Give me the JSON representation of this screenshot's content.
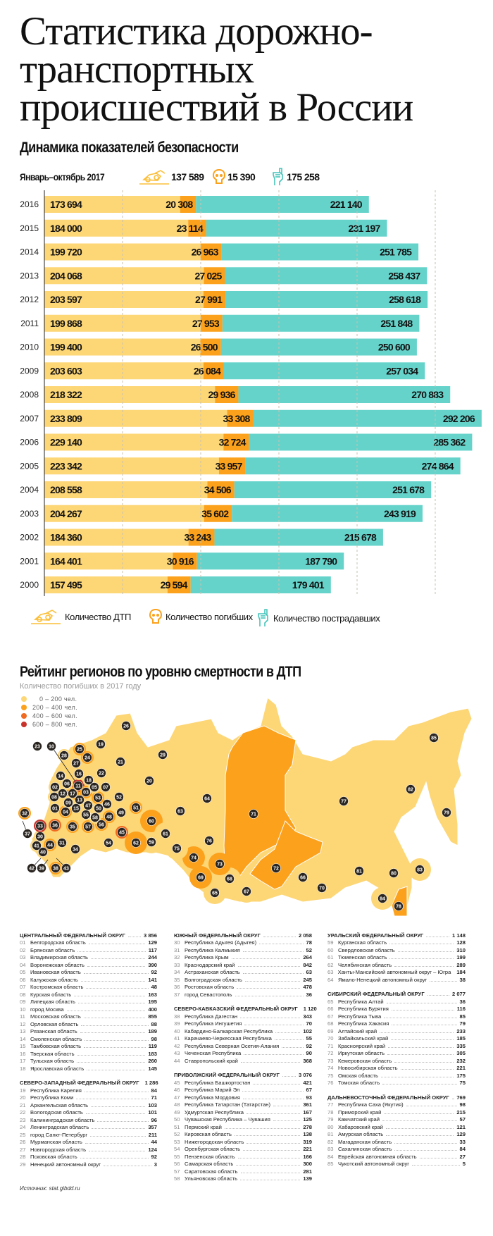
{
  "title": {
    "lines": [
      "Статистика дорожно-",
      "транспортных",
      "происшествий в России"
    ]
  },
  "section1": {
    "title": "Динамика показателей безопасности",
    "period_label": "Январь–октябрь 2017",
    "totals": {
      "dtp": "137 589",
      "deaths": "15 390",
      "injured": "175 258"
    }
  },
  "colors": {
    "dtp": "#fdd676",
    "deaths": "#fca11c",
    "injured": "#66d3cb",
    "c0_200": "#fdd676",
    "c200_400": "#fca11c",
    "c400_600": "#f06a20",
    "c600_800": "#c8332b",
    "marker": "#2a2520"
  },
  "chart_data": {
    "type": "bar",
    "orientation": "horizontal-stacked",
    "categories": [
      "2016",
      "2015",
      "2014",
      "2013",
      "2012",
      "2011",
      "2010",
      "2009",
      "2008",
      "2007",
      "2006",
      "2005",
      "2004",
      "2003",
      "2002",
      "2001",
      "2000"
    ],
    "series": [
      {
        "name": "Количество ДТП",
        "values": [
          173694,
          184000,
          199720,
          204068,
          203597,
          199868,
          199400,
          203603,
          218322,
          233809,
          229140,
          223342,
          208558,
          204267,
          184360,
          164401,
          157495
        ]
      },
      {
        "name": "Количество погибших",
        "values": [
          20308,
          23114,
          26963,
          27025,
          27991,
          27953,
          26500,
          26084,
          29936,
          33308,
          32724,
          33957,
          34506,
          35602,
          33243,
          30916,
          29594
        ]
      },
      {
        "name": "Количество пострадавших",
        "values": [
          221140,
          231197,
          251785,
          258437,
          258618,
          251848,
          250600,
          257034,
          270883,
          292206,
          285362,
          274864,
          251678,
          243919,
          215678,
          187790,
          179401
        ]
      }
    ],
    "grid": "dashed vertical",
    "legend": "bottom",
    "icons": [
      "crashed-car-icon",
      "skull-icon",
      "bandaged-hand-icon"
    ]
  },
  "legend": {
    "dtp": "Количество ДТП",
    "deaths": "Количество погибших",
    "injured": "Количество пострадавших"
  },
  "section2": {
    "title": "Рейтинг регионов по уровню смертности в ДТП",
    "subtitle": "Количество погибших в 2017 году",
    "scale": [
      "0 – 200 чел.",
      "200 – 400 чел.",
      "400 – 600 чел.",
      "600 – 800 чел."
    ]
  },
  "districts": [
    {
      "col": 0,
      "name": "ЦЕНТРАЛЬНЫЙ ФЕДЕРАЛЬНЫЙ ОКРУГ",
      "total": "3 856",
      "regions": [
        {
          "code": "01",
          "name": "Белгородская область",
          "value": "129"
        },
        {
          "code": "02",
          "name": "Брянская область",
          "value": "117"
        },
        {
          "code": "03",
          "name": "Владимирская область",
          "value": "244"
        },
        {
          "code": "04",
          "name": "Воронежская область",
          "value": "390"
        },
        {
          "code": "05",
          "name": "Ивановская область",
          "value": "92"
        },
        {
          "code": "06",
          "name": "Калужская область",
          "value": "141"
        },
        {
          "code": "07",
          "name": "Костромская область",
          "value": "48"
        },
        {
          "code": "08",
          "name": "Курская область",
          "value": "163"
        },
        {
          "code": "09",
          "name": "Липецкая область",
          "value": "195"
        },
        {
          "code": "10",
          "name": "город Москва",
          "value": "400"
        },
        {
          "code": "11",
          "name": "Московская область",
          "value": "855"
        },
        {
          "code": "12",
          "name": "Орловская область",
          "value": "88"
        },
        {
          "code": "13",
          "name": "Рязанская область",
          "value": "189"
        },
        {
          "code": "14",
          "name": "Смоленская область",
          "value": "98"
        },
        {
          "code": "15",
          "name": "Тамбовская область",
          "value": "119"
        },
        {
          "code": "16",
          "name": "Тверская область",
          "value": "183"
        },
        {
          "code": "17",
          "name": "Тульская область",
          "value": "260"
        },
        {
          "code": "18",
          "name": "Ярославская область",
          "value": "145"
        }
      ]
    },
    {
      "col": 0,
      "name": "СЕВЕРО-ЗАПАДНЫЙ ФЕДЕРАЛЬНЫЙ ОКРУГ",
      "total": "1 286",
      "regions": [
        {
          "code": "19",
          "name": "Республика Карелия",
          "value": "84"
        },
        {
          "code": "20",
          "name": "Республика Коми",
          "value": "71"
        },
        {
          "code": "21",
          "name": "Архангельская область",
          "value": "103"
        },
        {
          "code": "22",
          "name": "Вологодская область",
          "value": "101"
        },
        {
          "code": "23",
          "name": "Калининградская область",
          "value": "96"
        },
        {
          "code": "24",
          "name": "Ленинградская область",
          "value": "357"
        },
        {
          "code": "25",
          "name": "город Санкт-Петербург",
          "value": "211"
        },
        {
          "code": "26",
          "name": "Мурманская область",
          "value": "44"
        },
        {
          "code": "27",
          "name": "Новгородская область",
          "value": "124"
        },
        {
          "code": "28",
          "name": "Псковская область",
          "value": "92"
        },
        {
          "code": "29",
          "name": "Ненецкий автономный округ",
          "value": "3"
        }
      ]
    },
    {
      "col": 1,
      "name": "ЮЖНЫЙ ФЕДЕРАЛЬНЫЙ ОКРУГ",
      "total": "2 058",
      "regions": [
        {
          "code": "30",
          "name": "Республика Адыгея (Адыгея)",
          "value": "78"
        },
        {
          "code": "31",
          "name": "Республика Калмыкия",
          "value": "52"
        },
        {
          "code": "32",
          "name": "Республика Крым",
          "value": "264"
        },
        {
          "code": "33",
          "name": "Краснодарский край",
          "value": "842"
        },
        {
          "code": "34",
          "name": "Астраханская область",
          "value": "63"
        },
        {
          "code": "35",
          "name": "Волгоградская область",
          "value": "245"
        },
        {
          "code": "36",
          "name": "Ростовская область",
          "value": "478"
        },
        {
          "code": "37",
          "name": "город Севастополь",
          "value": "36"
        }
      ]
    },
    {
      "col": 1,
      "name": "СЕВЕРО-КАВКАЗСКИЙ ФЕДЕРАЛЬНЫЙ ОКРУГ",
      "total": "1 120",
      "regions": [
        {
          "code": "38",
          "name": "Республика Дагестан",
          "value": "343"
        },
        {
          "code": "39",
          "name": "Республика Ингушетия",
          "value": "70"
        },
        {
          "code": "40",
          "name": "Кабардино-Балкарская Республика",
          "value": "102"
        },
        {
          "code": "41",
          "name": "Карачаево-Черкесская Республика",
          "value": "55"
        },
        {
          "code": "42",
          "name": "Республика Северная Осетия-Алания",
          "value": "92"
        },
        {
          "code": "43",
          "name": "Чеченская Республика",
          "value": "90"
        },
        {
          "code": "44",
          "name": "Ставропольский край",
          "value": "368"
        }
      ]
    },
    {
      "col": 1,
      "name": "ПРИВОЛЖСКИЙ ФЕДЕРАЛЬНЫЙ ОКРУГ",
      "total": "3 076",
      "regions": [
        {
          "code": "45",
          "name": "Республика Башкортостан",
          "value": "421"
        },
        {
          "code": "46",
          "name": "Республика Марий Эл",
          "value": "67"
        },
        {
          "code": "47",
          "name": "Республика Мордовия",
          "value": "93"
        },
        {
          "code": "48",
          "name": "Республика Татарстан (Татарстан)",
          "value": "361"
        },
        {
          "code": "49",
          "name": "Удмуртская Республика",
          "value": "167"
        },
        {
          "code": "50",
          "name": "Чувашская Республика – Чувашия",
          "value": "125"
        },
        {
          "code": "51",
          "name": "Пермский край",
          "value": "278"
        },
        {
          "code": "52",
          "name": "Кировская область",
          "value": "138"
        },
        {
          "code": "53",
          "name": "Нижегородская область",
          "value": "319"
        },
        {
          "code": "54",
          "name": "Оренбургская область",
          "value": "221"
        },
        {
          "code": "55",
          "name": "Пензенская область",
          "value": "166"
        },
        {
          "code": "56",
          "name": "Самарская область",
          "value": "300"
        },
        {
          "code": "57",
          "name": "Саратовская область",
          "value": "281"
        },
        {
          "code": "58",
          "name": "Ульяновская область",
          "value": "139"
        }
      ]
    },
    {
      "col": 2,
      "name": "УРАЛЬСКИЙ ФЕДЕРАЛЬНЫЙ ОКРУГ",
      "total": "1 148",
      "regions": [
        {
          "code": "59",
          "name": "Курганская область",
          "value": "128"
        },
        {
          "code": "60",
          "name": "Свердловская область",
          "value": "310"
        },
        {
          "code": "61",
          "name": "Тюменская область",
          "value": "199"
        },
        {
          "code": "62",
          "name": "Челябинская область",
          "value": "289"
        },
        {
          "code": "63",
          "name": "Ханты-Мансийский автономный округ – Югра",
          "value": "184"
        },
        {
          "code": "64",
          "name": "Ямало-Ненецкий автономный округ",
          "value": "38"
        }
      ]
    },
    {
      "col": 2,
      "name": "СИБИРСКИЙ ФЕДЕРАЛЬНЫЙ ОКРУГ",
      "total": "2 077",
      "regions": [
        {
          "code": "65",
          "name": "Республика Алтай",
          "value": "36"
        },
        {
          "code": "66",
          "name": "Республика Бурятия",
          "value": "116"
        },
        {
          "code": "67",
          "name": "Республика Тыва",
          "value": "85"
        },
        {
          "code": "68",
          "name": "Республика Хакасия",
          "value": "79"
        },
        {
          "code": "69",
          "name": "Алтайский край",
          "value": "233"
        },
        {
          "code": "70",
          "name": "Забайкальский край",
          "value": "185"
        },
        {
          "code": "71",
          "name": "Красноярский край",
          "value": "335"
        },
        {
          "code": "72",
          "name": "Иркутская область",
          "value": "305"
        },
        {
          "code": "73",
          "name": "Кемеровская область",
          "value": "232"
        },
        {
          "code": "74",
          "name": "Новосибирская область",
          "value": "221"
        },
        {
          "code": "75",
          "name": "Омская область",
          "value": "175"
        },
        {
          "code": "76",
          "name": "Томская область",
          "value": "75"
        }
      ]
    },
    {
      "col": 2,
      "name": "ДАЛЬНЕВОСТОЧНЫЙ ФЕДЕРАЛЬНЫЙ ОКРУГ",
      "total": "769",
      "regions": [
        {
          "code": "77",
          "name": "Республика Саха (Якутия)",
          "value": "98"
        },
        {
          "code": "78",
          "name": "Приморский край",
          "value": "215"
        },
        {
          "code": "79",
          "name": "Камчатский край",
          "value": "57"
        },
        {
          "code": "80",
          "name": "Хабаровский край",
          "value": "121"
        },
        {
          "code": "81",
          "name": "Амурская область",
          "value": "129"
        },
        {
          "code": "82",
          "name": "Магаданская область",
          "value": "33"
        },
        {
          "code": "83",
          "name": "Сахалинская область",
          "value": "84"
        },
        {
          "code": "84",
          "name": "Еврейская автономная область",
          "value": "27"
        },
        {
          "code": "85",
          "name": "Чукотский автономный округ",
          "value": "5"
        }
      ]
    }
  ],
  "source": "Источник: stat.gibdd.ru"
}
